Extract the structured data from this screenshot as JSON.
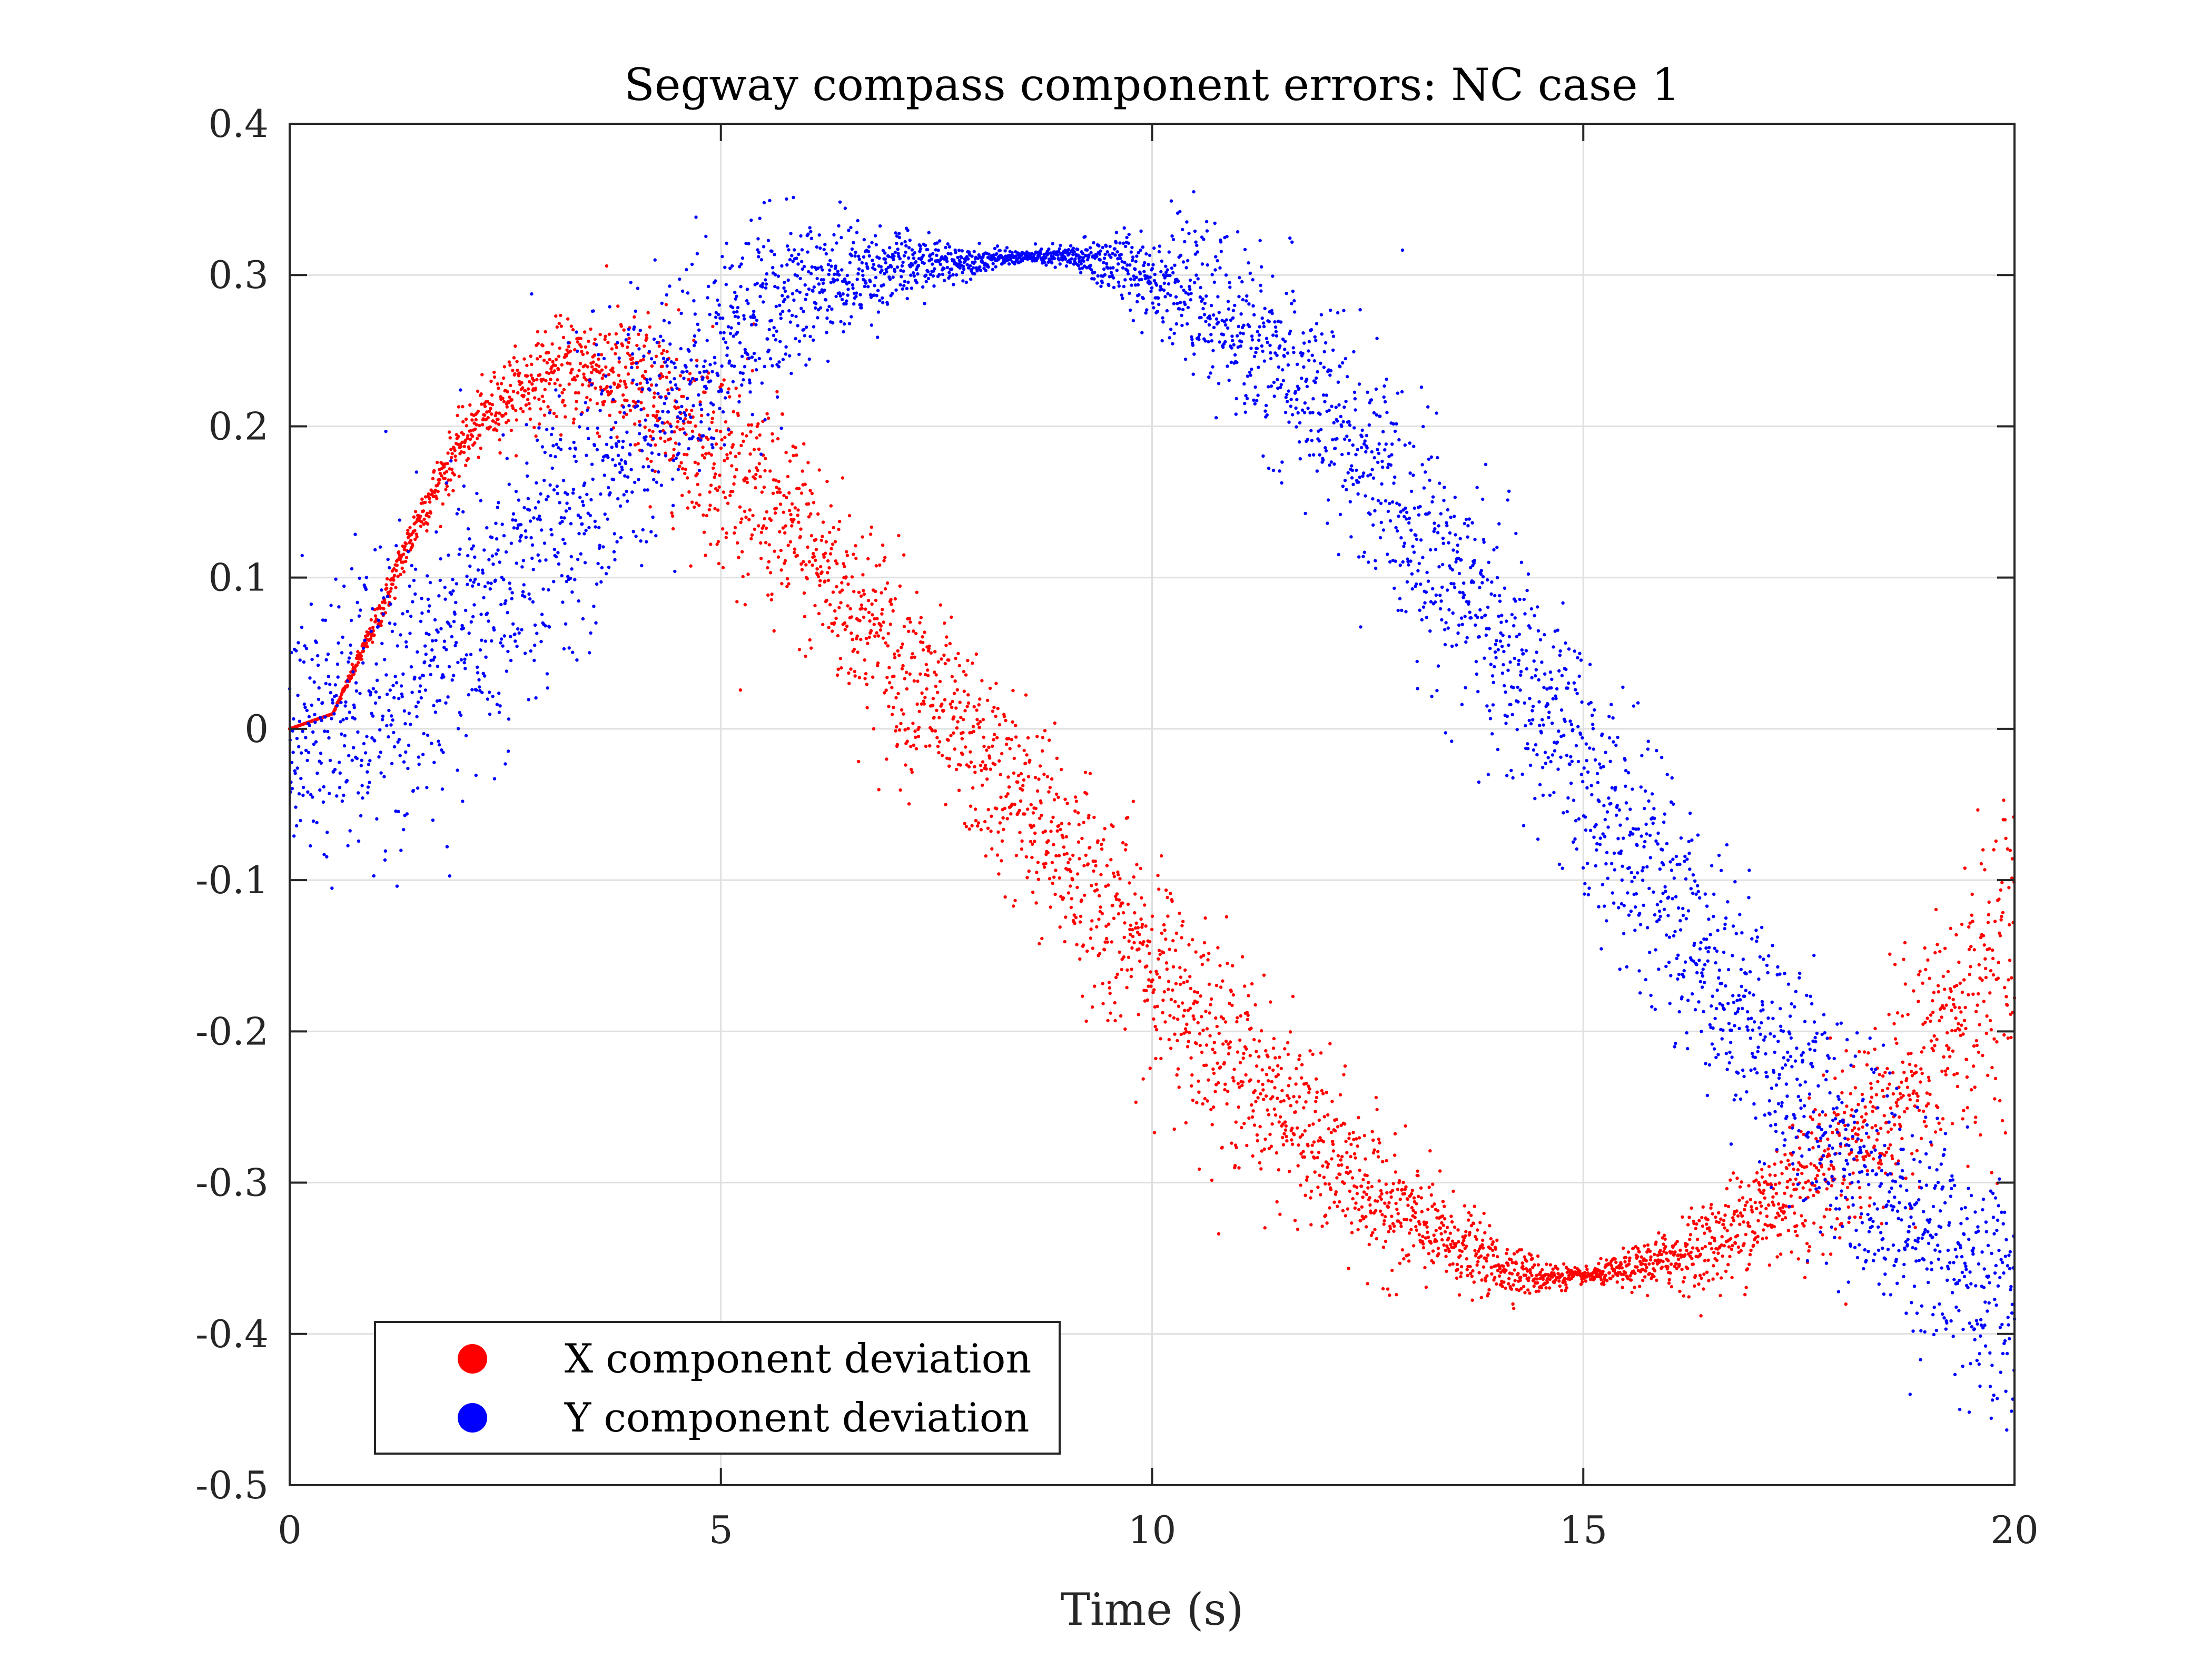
{
  "chart_data": {
    "type": "scatter",
    "title": "Segway compass component errors: NC case 1",
    "xlabel": "Time (s)",
    "ylabel": "",
    "xlim": [
      0,
      20
    ],
    "ylim": [
      -0.5,
      0.4
    ],
    "xticks": [
      0,
      5,
      10,
      15,
      20
    ],
    "yticks": [
      -0.5,
      -0.4,
      -0.3,
      -0.2,
      -0.1,
      0,
      0.1,
      0.2,
      0.3,
      0.4
    ],
    "xtick_labels": [
      "0",
      "5",
      "10",
      "15",
      "20"
    ],
    "ytick_labels": [
      "-0.5",
      "-0.4",
      "-0.3",
      "-0.2",
      "-0.1",
      "0",
      "0.1",
      "0.2",
      "0.3",
      "0.4"
    ],
    "grid": true,
    "legend_position": "bottom-left",
    "series": [
      {
        "name": "X component deviation",
        "color": "#ff0000",
        "x": [
          0,
          0.5,
          1,
          1.5,
          2,
          2.5,
          3,
          3.5,
          4,
          4.5,
          5,
          5.5,
          6,
          6.5,
          7,
          7.5,
          8,
          8.5,
          9,
          9.5,
          10,
          10.5,
          11,
          11.5,
          12,
          12.5,
          13,
          13.5,
          14,
          14.5,
          15,
          15.5,
          16,
          16.5,
          17,
          17.5,
          18,
          18.5,
          19,
          19.5,
          20
        ],
        "y": [
          0,
          0.01,
          0.07,
          0.14,
          0.19,
          0.22,
          0.235,
          0.24,
          0.225,
          0.205,
          0.18,
          0.15,
          0.12,
          0.085,
          0.05,
          0.015,
          -0.02,
          -0.05,
          -0.085,
          -0.12,
          -0.155,
          -0.19,
          -0.22,
          -0.25,
          -0.28,
          -0.305,
          -0.325,
          -0.34,
          -0.355,
          -0.362,
          -0.362,
          -0.358,
          -0.35,
          -0.34,
          -0.32,
          -0.3,
          -0.28,
          -0.25,
          -0.215,
          -0.18,
          -0.14
        ],
        "spread": [
          0,
          0,
          0.005,
          0.008,
          0.01,
          0.012,
          0.015,
          0.02,
          0.025,
          0.03,
          0.035,
          0.035,
          0.035,
          0.035,
          0.035,
          0.03,
          0.03,
          0.035,
          0.035,
          0.035,
          0.035,
          0.035,
          0.033,
          0.03,
          0.028,
          0.025,
          0.02,
          0.015,
          0.01,
          0.006,
          0.002,
          0.006,
          0.01,
          0.015,
          0.02,
          0.025,
          0.03,
          0.035,
          0.04,
          0.045,
          0.05
        ]
      },
      {
        "name": "Y component deviation",
        "color": "#0000ff",
        "x": [
          0,
          0.5,
          1,
          1.5,
          2,
          2.5,
          3,
          3.5,
          4,
          4.5,
          5,
          5.5,
          6,
          6.5,
          7,
          7.5,
          8,
          8.5,
          9,
          9.5,
          10,
          10.5,
          11,
          11.5,
          12,
          12.5,
          13,
          13.5,
          14,
          14.5,
          15,
          15.5,
          16,
          16.5,
          17,
          17.5,
          18,
          18.5,
          19,
          19.5,
          20
        ],
        "y": [
          0,
          0.005,
          0.015,
          0.03,
          0.06,
          0.09,
          0.12,
          0.16,
          0.2,
          0.23,
          0.255,
          0.275,
          0.29,
          0.3,
          0.305,
          0.308,
          0.31,
          0.312,
          0.312,
          0.308,
          0.3,
          0.285,
          0.265,
          0.24,
          0.21,
          0.175,
          0.14,
          0.1,
          0.06,
          0.015,
          -0.03,
          -0.075,
          -0.115,
          -0.155,
          -0.195,
          -0.235,
          -0.275,
          -0.305,
          -0.335,
          -0.36,
          -0.38
        ],
        "spread": [
          0.04,
          0.045,
          0.05,
          0.05,
          0.05,
          0.05,
          0.05,
          0.048,
          0.045,
          0.04,
          0.035,
          0.03,
          0.025,
          0.018,
          0.012,
          0.008,
          0.004,
          0.002,
          0.004,
          0.01,
          0.016,
          0.022,
          0.028,
          0.032,
          0.035,
          0.038,
          0.04,
          0.04,
          0.04,
          0.04,
          0.04,
          0.04,
          0.04,
          0.04,
          0.04,
          0.04,
          0.04,
          0.04,
          0.04,
          0.04,
          0.04
        ]
      }
    ]
  }
}
